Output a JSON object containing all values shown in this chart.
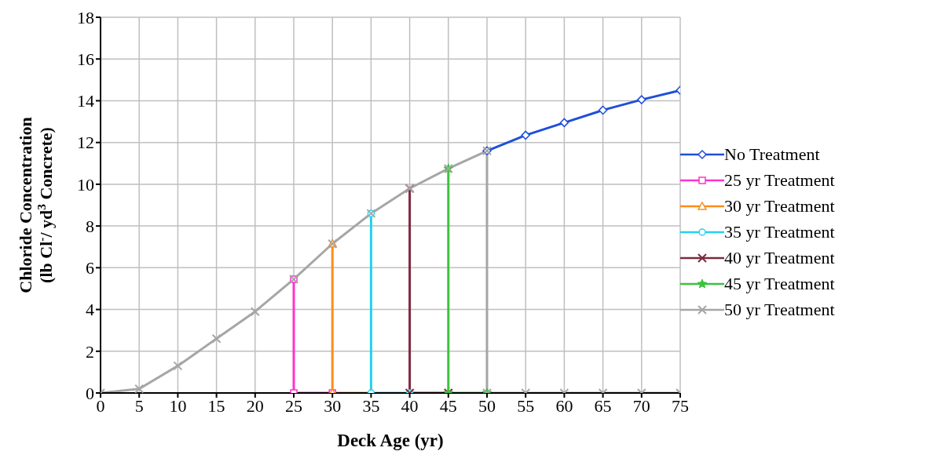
{
  "chart_data": {
    "type": "line",
    "xlabel": "Deck Age (yr)",
    "ylabel": "Chloride Concentration\n(lb Cl$^{-}$/ yd$^{3}$ Concrete)",
    "xlim": [
      0,
      75
    ],
    "ylim": [
      0,
      18
    ],
    "xticks": [
      0,
      5,
      10,
      15,
      20,
      25,
      30,
      35,
      40,
      45,
      50,
      55,
      60,
      65,
      70,
      75
    ],
    "yticks": [
      0,
      2,
      4,
      6,
      8,
      10,
      12,
      14,
      16,
      18
    ],
    "grid": true,
    "legend": "right",
    "line_style": "solid",
    "series": [
      {
        "name": "No Treatment",
        "color": "#1f4fd8",
        "marker": "diamond",
        "x": [
          50,
          55,
          60,
          65,
          70,
          75
        ],
        "values": [
          11.6,
          12.35,
          12.95,
          13.55,
          14.05,
          14.5
        ]
      },
      {
        "name": "25 yr Treatment",
        "color": "#ff33cc",
        "marker": "square",
        "x": [
          25,
          25,
          30
        ],
        "values": [
          5.45,
          0,
          0
        ]
      },
      {
        "name": "30 yr Treatment",
        "color": "#ff8c1a",
        "marker": "triangle",
        "x": [
          30,
          30,
          35
        ],
        "values": [
          7.15,
          0,
          0
        ]
      },
      {
        "name": "35 yr Treatment",
        "color": "#22d3ee",
        "marker": "circle",
        "x": [
          35,
          35,
          40
        ],
        "values": [
          8.6,
          0,
          0
        ]
      },
      {
        "name": "40 yr Treatment",
        "color": "#7b2a3f",
        "marker": "cross",
        "x": [
          40,
          40,
          45
        ],
        "values": [
          9.8,
          0,
          0
        ]
      },
      {
        "name": "45 yr Treatment",
        "color": "#3cc23c",
        "marker": "star",
        "x": [
          45,
          45,
          50
        ],
        "values": [
          10.75,
          0,
          0
        ]
      },
      {
        "name": "50 yr Treatment",
        "color": "#a6a6a6",
        "marker": "cross",
        "x": [
          0,
          5,
          10,
          15,
          20,
          25,
          30,
          35,
          40,
          45,
          50,
          50,
          55,
          60,
          65,
          70,
          75
        ],
        "values": [
          0,
          0.2,
          1.3,
          2.6,
          3.9,
          5.45,
          7.15,
          8.6,
          9.8,
          10.75,
          11.6,
          0,
          0,
          0,
          0,
          0,
          0
        ]
      }
    ]
  }
}
